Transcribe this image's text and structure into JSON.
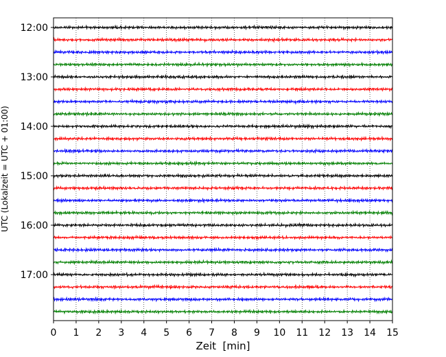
{
  "chart_data": {
    "type": "line",
    "title": "",
    "xlabel": "Zeit  [min]",
    "ylabel": "UTC (Lokalzeit = UTC + 01:00)",
    "xlim": [
      0,
      15
    ],
    "xticks": [
      "0",
      "1",
      "2",
      "3",
      "4",
      "5",
      "6",
      "7",
      "8",
      "9",
      "10",
      "11",
      "12",
      "13",
      "14",
      "15"
    ],
    "yticks": [
      "12:00",
      "13:00",
      "14:00",
      "15:00",
      "16:00",
      "17:00"
    ],
    "trace_interval_minutes": 15,
    "first_trace": "12:00",
    "trace_count": 24,
    "trace_colors": [
      "#000000",
      "#ff0000",
      "#0000ff",
      "#007f00"
    ],
    "x_grid": "dotted",
    "legend": "none"
  }
}
